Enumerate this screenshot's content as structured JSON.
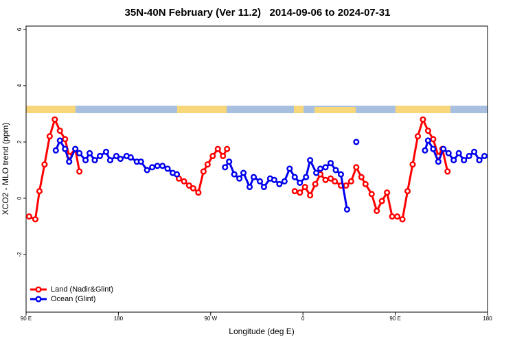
{
  "chart_data": {
    "type": "line",
    "title": "35N-40N February (Ver 11.2)   2014-09-06 to 2024-07-31",
    "xlabel": "Longitude (deg E)",
    "ylabel": "XCO2 - MLO trend (ppm)",
    "xlim": [
      90,
      540
    ],
    "xticks": [
      {
        "value": 90,
        "label": "90 E"
      },
      180,
      {
        "value": 270,
        "label": "90 W"
      },
      {
        "value": 360,
        "label": "0"
      },
      {
        "value": 450,
        "label": "90 E"
      },
      {
        "value": 540,
        "label": "180"
      }
    ],
    "ylim": [
      -4.05,
      6.12
    ],
    "yticks": [
      6,
      4,
      2,
      0,
      -2
    ],
    "legend": "lower left",
    "series": [
      {
        "name": "Land (Nadir&Glint)",
        "color": "#ff0000",
        "x": [
          93,
          99,
          103,
          108,
          113,
          118,
          123,
          128,
          132,
          138,
          142,
          null,
          239,
          244,
          249,
          253,
          258,
          263,
          267,
          272,
          277,
          282,
          286,
          null,
          352,
          357,
          362,
          367,
          372,
          377,
          382,
          387,
          391,
          397,
          402,
          407,
          412,
          417,
          421,
          427,
          432,
          437,
          442,
          447,
          452,
          457,
          462,
          467,
          472,
          477,
          482,
          487,
          492,
          496,
          501
        ],
        "values": [
          -0.65,
          -0.75,
          0.25,
          1.2,
          2.2,
          2.8,
          2.4,
          2.1,
          1.5,
          1.75,
          0.95,
          null,
          0.7,
          0.6,
          0.45,
          0.35,
          0.2,
          0.95,
          1.2,
          1.5,
          1.75,
          1.5,
          1.75,
          null,
          0.25,
          0.2,
          0.4,
          0.1,
          0.5,
          0.85,
          0.65,
          0.7,
          0.6,
          0.45,
          0.45,
          0.6,
          1.1,
          0.75,
          0.5,
          0.15,
          -0.45,
          -0.1,
          0.2,
          -0.65,
          -0.65,
          -0.75,
          0.25,
          1.2,
          2.2,
          2.8,
          2.4,
          2.1,
          1.5,
          1.75,
          0.95
        ]
      },
      {
        "name": "Ocean (Glint)",
        "color": "#0000ee",
        "x": [
          119,
          123,
          128,
          132,
          138,
          142,
          148,
          152,
          157,
          162,
          168,
          172,
          178,
          182,
          188,
          192,
          198,
          202,
          208,
          213,
          218,
          223,
          228,
          233,
          237,
          null,
          284,
          288,
          293,
          298,
          302,
          308,
          312,
          318,
          322,
          328,
          332,
          337,
          342,
          347,
          352,
          357,
          363,
          367,
          373,
          377,
          382,
          387,
          392,
          397,
          403,
          null,
          412,
          null,
          479,
          482,
          487,
          492,
          497,
          502,
          507,
          512,
          517,
          522,
          527,
          532,
          537
        ],
        "values": [
          1.7,
          2.05,
          1.75,
          1.3,
          1.75,
          1.6,
          1.35,
          1.6,
          1.35,
          1.5,
          1.65,
          1.35,
          1.5,
          1.4,
          1.5,
          1.45,
          1.3,
          1.3,
          1.0,
          1.1,
          1.15,
          1.15,
          1.05,
          0.9,
          0.85,
          null,
          1.1,
          1.3,
          0.85,
          0.7,
          0.9,
          0.4,
          0.75,
          0.6,
          0.4,
          0.7,
          0.65,
          0.5,
          0.6,
          1.05,
          0.75,
          0.55,
          0.75,
          1.35,
          0.9,
          1.05,
          1.1,
          1.25,
          1.0,
          0.85,
          -0.4,
          null,
          2.0,
          null,
          1.7,
          2.05,
          1.75,
          1.3,
          1.75,
          1.6,
          1.35,
          1.6,
          1.35,
          1.5,
          1.65,
          1.35,
          1.5
        ]
      }
    ]
  }
}
